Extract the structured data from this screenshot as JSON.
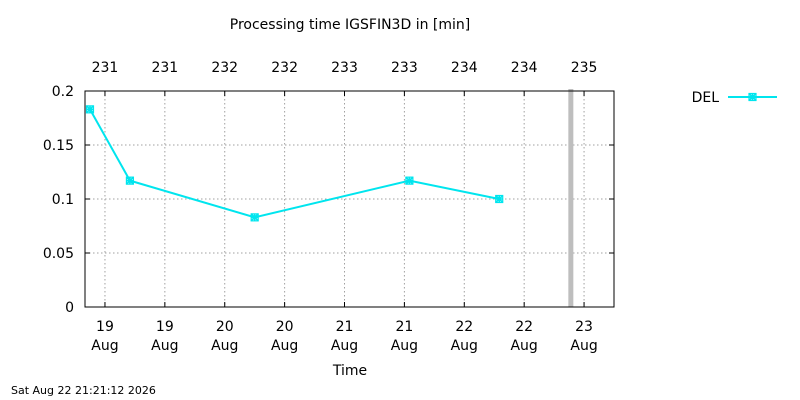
{
  "chart_data": {
    "type": "line",
    "title": "Processing time IGSFIN3D in [min]",
    "xlabel": "Time",
    "ylabel": "",
    "ylim": [
      0,
      0.2
    ],
    "xlim": [
      "2026-08-18T20:00",
      "2026-08-23T06:00"
    ],
    "y_ticks": [
      0,
      0.05,
      0.1,
      0.15,
      0.2
    ],
    "y_tick_labels": [
      "0",
      "0.05",
      "0.1",
      "0.15",
      "0.2"
    ],
    "x_ticks": [
      {
        "t": "2026-08-19T00:00",
        "label": [
          "19",
          "Aug"
        ]
      },
      {
        "t": "2026-08-19T12:00",
        "label": [
          "19",
          "Aug"
        ]
      },
      {
        "t": "2026-08-20T00:00",
        "label": [
          "20",
          "Aug"
        ]
      },
      {
        "t": "2026-08-20T12:00",
        "label": [
          "20",
          "Aug"
        ]
      },
      {
        "t": "2026-08-21T00:00",
        "label": [
          "21",
          "Aug"
        ]
      },
      {
        "t": "2026-08-21T12:00",
        "label": [
          "21",
          "Aug"
        ]
      },
      {
        "t": "2026-08-22T00:00",
        "label": [
          "22",
          "Aug"
        ]
      },
      {
        "t": "2026-08-22T12:00",
        "label": [
          "22",
          "Aug"
        ]
      },
      {
        "t": "2026-08-23T00:00",
        "label": [
          "23",
          "Aug"
        ]
      }
    ],
    "top_ticks": [
      {
        "t": "2026-08-19T00:00",
        "label": "231"
      },
      {
        "t": "2026-08-19T12:00",
        "label": "231"
      },
      {
        "t": "2026-08-20T00:00",
        "label": "232"
      },
      {
        "t": "2026-08-20T12:00",
        "label": "232"
      },
      {
        "t": "2026-08-21T00:00",
        "label": "233"
      },
      {
        "t": "2026-08-21T12:00",
        "label": "233"
      },
      {
        "t": "2026-08-22T00:00",
        "label": "234"
      },
      {
        "t": "2026-08-22T12:00",
        "label": "234"
      },
      {
        "t": "2026-08-23T00:00",
        "label": "235"
      }
    ],
    "grid": true,
    "legend_position": "top-right",
    "series": [
      {
        "name": "DEL",
        "color": "#00e5ee",
        "marker": "asterisk-box",
        "points": [
          {
            "x": "2026-08-18T21:00",
            "y": 0.183
          },
          {
            "x": "2026-08-19T05:00",
            "y": 0.117
          },
          {
            "x": "2026-08-20T06:00",
            "y": 0.083
          },
          {
            "x": "2026-08-21T13:00",
            "y": 0.117
          },
          {
            "x": "2026-08-22T07:00",
            "y": 0.1
          }
        ]
      }
    ],
    "now_marker": {
      "x": "2026-08-22T21:21",
      "color": "#bebebe"
    }
  },
  "footer": {
    "timestamp": "Sat Aug 22 21:21:12 2026"
  }
}
